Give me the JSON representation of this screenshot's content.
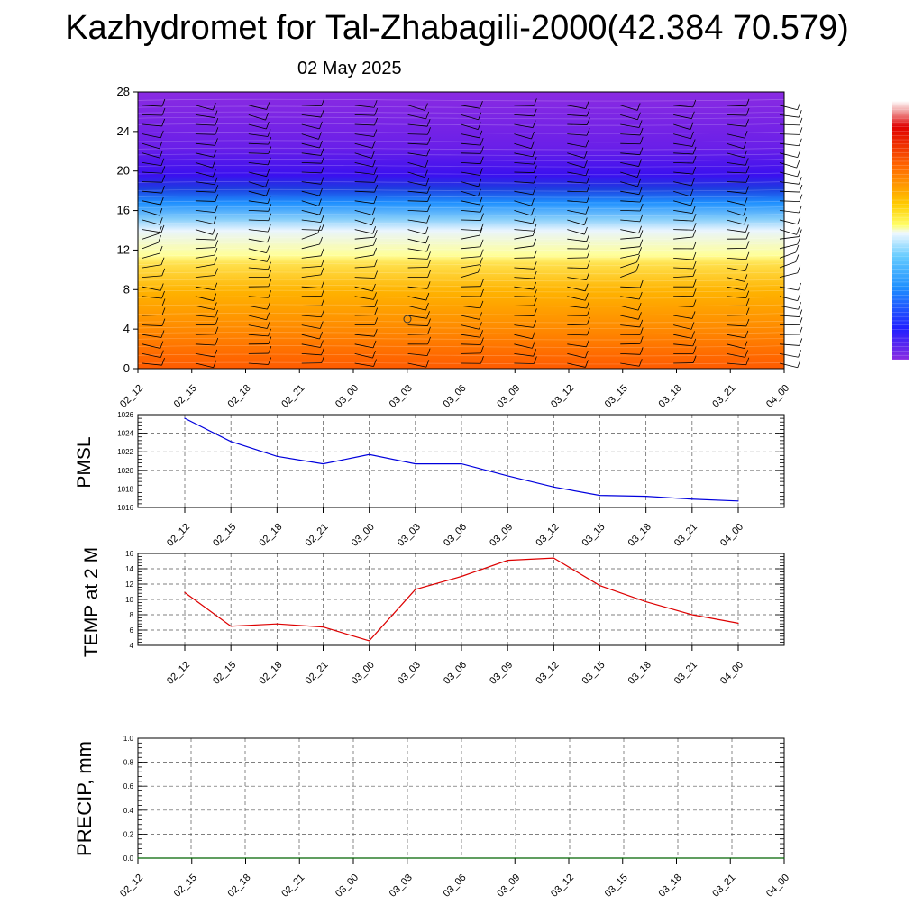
{
  "title": "Kazhydromet for Tal-Zhabagili-2000(42.384 70.579)",
  "subtitle": "02 May 2025",
  "colors": {
    "pmsl_line": "#0000dd",
    "temp_line": "#dd0000",
    "precip_line": "#006400",
    "grid": "#555555",
    "barb": "#000000"
  },
  "chart_data": [
    {
      "type": "heatmap",
      "name": "vertical-section",
      "xtick_labels": [
        "02_12",
        "02_15",
        "02_18",
        "02_21",
        "03_00",
        "03_03",
        "03_06",
        "03_09",
        "03_12",
        "03_15",
        "03_18",
        "03_21",
        "04_00"
      ],
      "yticks": [
        0,
        4,
        8,
        12,
        16,
        20,
        24,
        28
      ],
      "ylim": [
        0,
        28
      ],
      "colorbar": true
    },
    {
      "type": "line",
      "name": "pmsl",
      "ylabel": "PMSL",
      "categories": [
        "02_12",
        "02_15",
        "02_18",
        "02_21",
        "03_00",
        "03_03",
        "03_06",
        "03_09",
        "03_12",
        "03_15",
        "03_18",
        "03_21",
        "04_00"
      ],
      "values": [
        1025.6,
        1023.1,
        1021.5,
        1020.7,
        1021.7,
        1020.7,
        1020.7,
        1019.4,
        1018.2,
        1017.3,
        1017.2,
        1016.9,
        1016.7
      ],
      "yticks": [
        1016,
        1018,
        1020,
        1022,
        1024,
        1026
      ],
      "ylim": [
        1016,
        1026
      ],
      "grid": true
    },
    {
      "type": "line",
      "name": "temp",
      "ylabel": "TEMP at 2 M",
      "categories": [
        "02_12",
        "02_15",
        "02_18",
        "02_21",
        "03_00",
        "03_03",
        "03_06",
        "03_09",
        "03_12",
        "03_15",
        "03_18",
        "03_21",
        "04_00"
      ],
      "values": [
        10.9,
        6.5,
        6.8,
        6.4,
        4.6,
        11.3,
        13.0,
        15.1,
        15.4,
        11.8,
        9.7,
        8.0,
        6.9
      ],
      "yticks": [
        4,
        6,
        8,
        10,
        12,
        14,
        16
      ],
      "ylim": [
        4,
        16
      ],
      "grid": true
    },
    {
      "type": "line",
      "name": "precip",
      "ylabel": "PRECIP, mm",
      "categories": [
        "02_12",
        "02_15",
        "02_18",
        "02_21",
        "03_00",
        "03_03",
        "03_06",
        "03_09",
        "03_12",
        "03_15",
        "03_18",
        "03_21",
        "04_00"
      ],
      "values": [
        0,
        0,
        0,
        0,
        0,
        0,
        0,
        0,
        0,
        0,
        0,
        0,
        0
      ],
      "yticks": [
        "0.0",
        "0.2",
        "0.4",
        "0.6",
        "0.8",
        "1.0"
      ],
      "ylim": [
        0,
        1
      ],
      "grid": true
    }
  ]
}
